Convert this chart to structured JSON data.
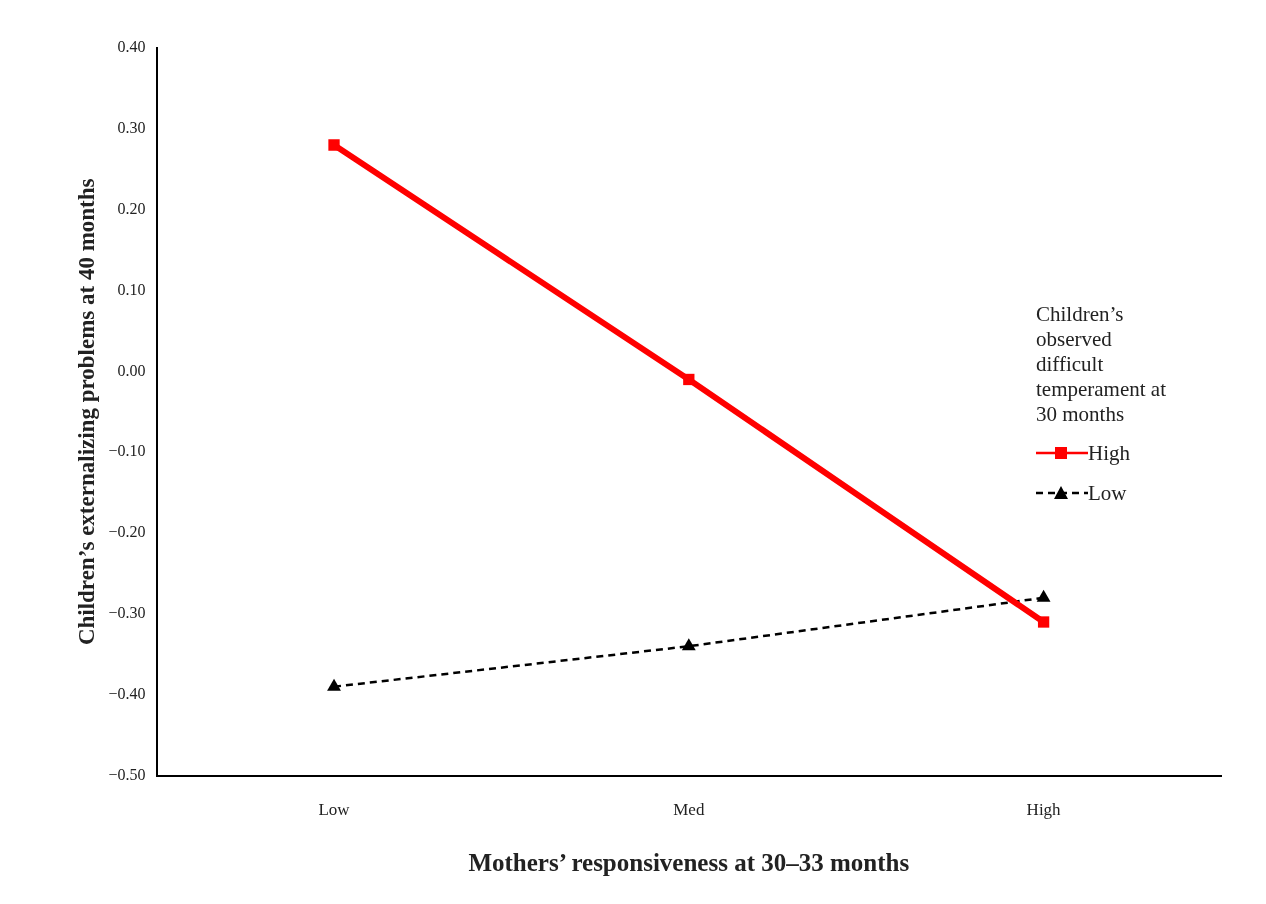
{
  "chart_data": {
    "type": "line",
    "xlabel": "Mothers’ responsiveness at 30–33 months",
    "ylabel": "Children’s externalizing problems at 40 months",
    "categories": [
      "Low",
      "Med",
      "High"
    ],
    "series": [
      {
        "name": "High",
        "color": "#ff0000",
        "values": [
          0.28,
          -0.01,
          -0.31
        ],
        "marker": "square",
        "line_style": "solid"
      },
      {
        "name": "Low",
        "color": "#000000",
        "values": [
          -0.39,
          -0.34,
          -0.28
        ],
        "marker": "triangle",
        "line_style": "dashed"
      }
    ],
    "ylim": [
      -0.5,
      0.4
    ],
    "yticks": [
      {
        "value": -0.5,
        "label": "−0.50"
      },
      {
        "value": -0.4,
        "label": "−0.40"
      },
      {
        "value": -0.3,
        "label": "−0.30"
      },
      {
        "value": -0.2,
        "label": "−0.20"
      },
      {
        "value": -0.1,
        "label": "−0.10"
      },
      {
        "value": 0,
        "label": "0.00"
      },
      {
        "value": 0.1,
        "label": "0.10"
      },
      {
        "value": 0.2,
        "label": "0.20"
      },
      {
        "value": 0.3,
        "label": "0.30"
      },
      {
        "value": 0.4,
        "label": "0.40"
      }
    ],
    "grid": false,
    "legend": "right",
    "legend_title": "Children’s observed difficult temperament at 30 months"
  }
}
